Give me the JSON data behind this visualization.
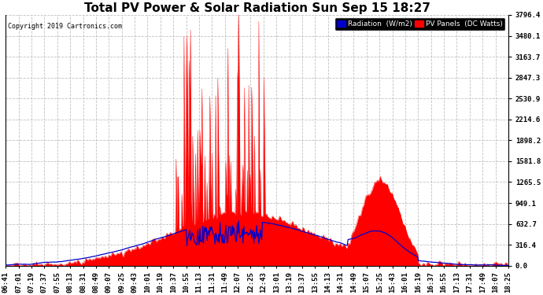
{
  "title": "Total PV Power & Solar Radiation Sun Sep 15 18:27",
  "copyright": "Copyright 2019 Cartronics.com",
  "yticks": [
    0.0,
    316.4,
    632.7,
    949.1,
    1265.5,
    1581.8,
    1898.2,
    2214.6,
    2530.9,
    2847.3,
    3163.7,
    3480.1,
    3796.4
  ],
  "ymax": 3796.4,
  "ymin": 0.0,
  "background_color": "#ffffff",
  "plot_background": "#ffffff",
  "grid_color": "#c0c0c0",
  "title_fontsize": 11,
  "tick_fontsize": 6.5,
  "legend_radiation_label": "Radiation  (W/m2)",
  "legend_pv_label": "PV Panels  (DC Watts)",
  "xtick_labels": [
    "06:41",
    "07:01",
    "07:19",
    "07:37",
    "07:55",
    "08:13",
    "08:31",
    "08:49",
    "09:07",
    "09:25",
    "09:43",
    "10:01",
    "10:19",
    "10:37",
    "10:55",
    "11:13",
    "11:31",
    "11:49",
    "12:07",
    "12:25",
    "12:43",
    "13:01",
    "13:19",
    "13:37",
    "13:55",
    "14:13",
    "14:31",
    "14:49",
    "15:07",
    "15:25",
    "15:43",
    "16:01",
    "16:19",
    "16:37",
    "16:55",
    "17:13",
    "17:31",
    "17:49",
    "18:07",
    "18:25"
  ],
  "n_points": 700
}
